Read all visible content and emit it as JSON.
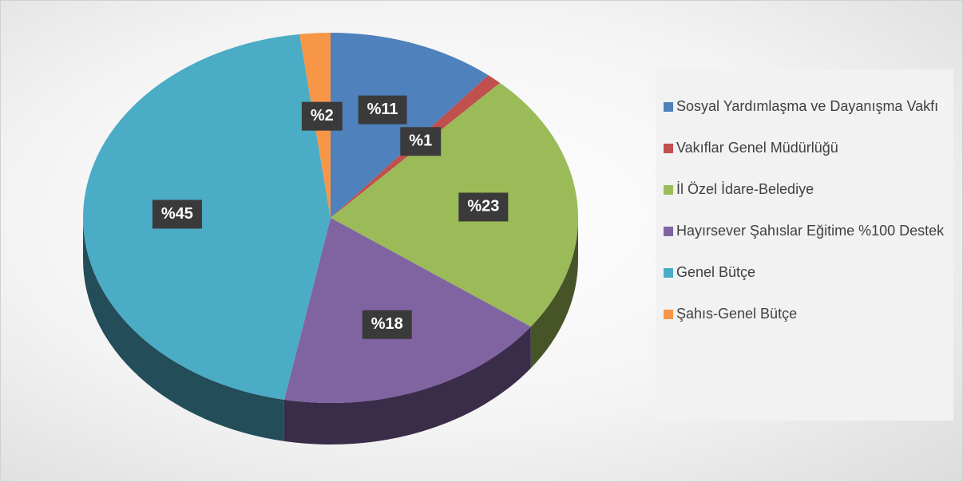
{
  "chart_data": {
    "type": "pie",
    "categories": [
      "Sosyal Yardımlaşma ve Dayanışma Vakfı",
      "Vakıflar Genel Müdürlüğü",
      "İl Özel İdare-Belediye",
      "Hayırsever Şahıslar Eğitime %100 Destek",
      "Genel Bütçe",
      "Şahıs-Genel Bütçe"
    ],
    "values": [
      11,
      1,
      23,
      18,
      45,
      2
    ],
    "value_labels": [
      "%11",
      "%1",
      "%23",
      "%18",
      "%45",
      "%2"
    ],
    "colors": [
      "#4f81bd",
      "#c0504d",
      "#9bbb59",
      "#8064a2",
      "#4bacc6",
      "#f79646"
    ],
    "legend": "right"
  }
}
